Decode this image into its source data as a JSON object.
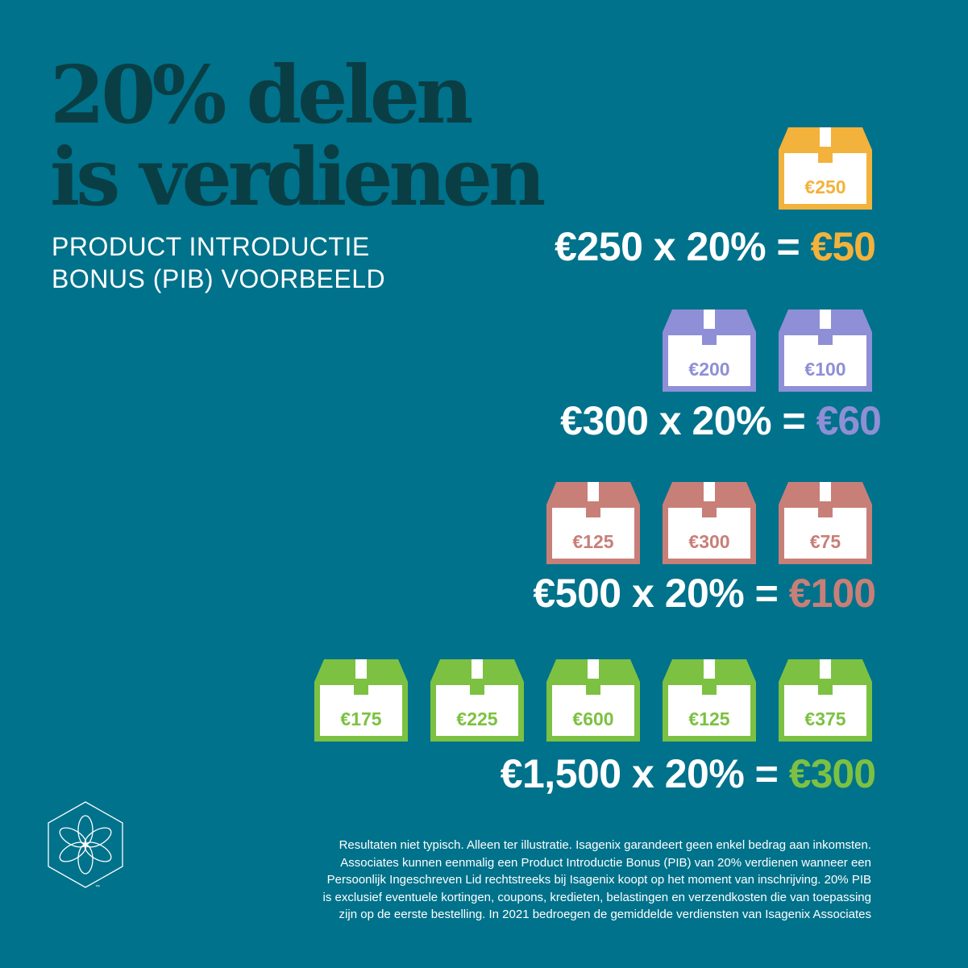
{
  "headline": {
    "line1": "20% delen",
    "line2": "is verdienen"
  },
  "subtitle": {
    "line1": "PRODUCT INTRODUCTIE",
    "line2": "BONUS (PIB) VOORBEELD"
  },
  "examples": [
    {
      "color": "#f3b23b",
      "boxes": [
        "€250"
      ],
      "equation": {
        "lhs": "€250 x 20% = ",
        "result": "€50"
      }
    },
    {
      "color": "#8e8fd6",
      "boxes": [
        "€200",
        "€100"
      ],
      "equation": {
        "lhs": "€300 x 20% = ",
        "result": "€60"
      }
    },
    {
      "color": "#c87f78",
      "boxes": [
        "€125",
        "€300",
        "€75"
      ],
      "equation": {
        "lhs": "€500 x 20% = ",
        "result": "€100"
      }
    },
    {
      "color": "#7cc142",
      "boxes": [
        "€175",
        "€225",
        "€600",
        "€125",
        "€375"
      ],
      "equation": {
        "lhs": "€1,500 x 20% = ",
        "result": "€300"
      }
    }
  ],
  "logo": {
    "icon": "isagenix-flower-hexagon-icon",
    "trademark": "™"
  },
  "disclaimer": {
    "lines": [
      "Resultaten niet typisch. Alleen ter illustratie. Isagenix garandeert geen enkel bedrag aan inkomsten.",
      "Associates kunnen eenmalig een Product Introductie Bonus (PIB) van 20% verdienen wanneer een",
      "Persoonlijk Ingeschreven Lid rechtstreeks bij Isagenix koopt op het moment van inschrijving. 20% PIB",
      "is exclusief eventuele kortingen, coupons, kredieten, belastingen en verzendkosten die van toepassing",
      "zijn op de eerste bestelling. In 2021 bedroegen de gemiddelde verdiensten van Isagenix Associates"
    ]
  }
}
